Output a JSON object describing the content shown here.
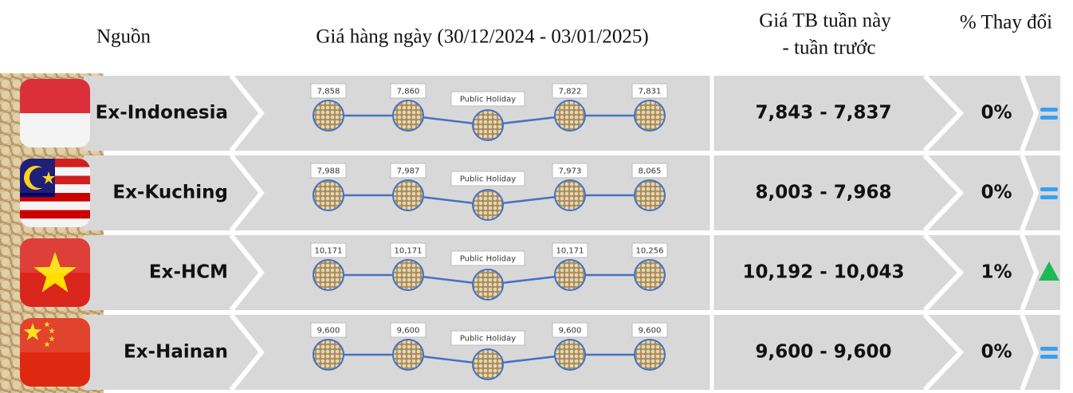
{
  "header": {
    "source": "Nguồn",
    "daily": "Giá hàng ngày (30/12/2024 - 03/01/2025)",
    "avg_line1": "Giá TB tuần này",
    "avg_line2": "- tuần trước",
    "change": "% Thay đổi"
  },
  "rows": [
    {
      "name": "Ex-Indonesia",
      "daily": [
        "7,858",
        "7,860",
        "Public Holiday",
        "7,822",
        "7,831"
      ],
      "avg": "7,843 - 7,837",
      "change": "0%"
    },
    {
      "name": "Ex-Kuching",
      "daily": [
        "7,988",
        "7,987",
        "Public Holiday",
        "7,973",
        "8,065"
      ],
      "avg": "8,003 - 7,968",
      "change": "0%"
    },
    {
      "name": "Ex-HCM",
      "daily": [
        "10,171",
        "10,171",
        "Public Holiday",
        "10,171",
        "10,256"
      ],
      "avg": "10,192 - 10,043",
      "change": "1%"
    },
    {
      "name": "Ex-Hainan",
      "daily": [
        "9,600",
        "9,600",
        "Public Holiday",
        "9,600",
        "9,600"
      ],
      "avg": "9,600 - 9,600",
      "change": "0%"
    }
  ]
}
